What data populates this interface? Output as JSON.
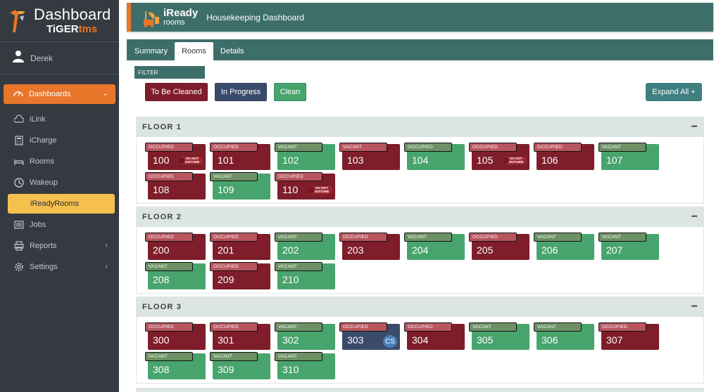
{
  "brand": {
    "title": "Dashboard",
    "sub_a": "TiGER",
    "sub_b": "tms"
  },
  "user": {
    "name": "Derek"
  },
  "nav": [
    {
      "label": "Dashboards",
      "icon": "gauge-icon",
      "state": "active-parent",
      "chevron": "⌄"
    },
    {
      "label": "iLink",
      "icon": "cloud-icon",
      "state": "sub"
    },
    {
      "label": "iCharge",
      "icon": "calculator-icon",
      "state": "sub"
    },
    {
      "label": "Rooms",
      "icon": "bed-icon",
      "state": "sub"
    },
    {
      "label": "Wakeup",
      "icon": "clock-icon",
      "state": "sub"
    },
    {
      "label": "iReadyRooms",
      "icon": "none",
      "state": "active"
    },
    {
      "label": "Jobs",
      "icon": "list-icon",
      "state": "sub"
    },
    {
      "label": "Reports",
      "icon": "printer-icon",
      "state": "parent",
      "chevron": "‹"
    },
    {
      "label": "Settings",
      "icon": "gear-icon",
      "state": "parent",
      "chevron": "‹"
    }
  ],
  "header": {
    "brand_main": "iReady",
    "brand_sub": "rooms",
    "title": "Housekeeping Dashboard"
  },
  "tabs": [
    {
      "label": "Summary",
      "active": false
    },
    {
      "label": "Rooms",
      "active": true
    },
    {
      "label": "Details",
      "active": false
    }
  ],
  "filter": {
    "label": "FILTER",
    "buttons": [
      {
        "label": "To Be Cleaned",
        "color": "#7f1d2a"
      },
      {
        "label": "In Progress",
        "color": "#3a4b6b"
      },
      {
        "label": "Clean",
        "color": "#48a46d"
      }
    ]
  },
  "expand_all": "Expand All +",
  "floors": [
    {
      "title": "FLOOR 1",
      "collapse": "−",
      "rooms": [
        {
          "number": "100",
          "status": "OCCUPIED",
          "state": "occupied",
          "dnd": true
        },
        {
          "number": "101",
          "status": "OCCUPIED",
          "state": "occupied"
        },
        {
          "number": "102",
          "status": "VACANT",
          "state": "vacant"
        },
        {
          "number": "103",
          "status": "VACANT",
          "state": "occupied"
        },
        {
          "number": "104",
          "status": "OCCUPIED",
          "state": "vacant"
        },
        {
          "number": "105",
          "status": "OCCUPIED",
          "state": "occupied",
          "dnd": true
        },
        {
          "number": "106",
          "status": "OCCUPIED",
          "state": "occupied"
        },
        {
          "number": "107",
          "status": "VACANT",
          "state": "vacant"
        },
        {
          "number": "108",
          "status": "OCCUPIED",
          "state": "occupied"
        },
        {
          "number": "109",
          "status": "VACANT",
          "state": "vacant"
        },
        {
          "number": "110",
          "status": "OCCUPIED",
          "state": "occupied",
          "dnd": true
        }
      ]
    },
    {
      "title": "FLOOR 2",
      "collapse": "−",
      "rooms": [
        {
          "number": "200",
          "status": "OCCUPIED",
          "state": "occupied"
        },
        {
          "number": "201",
          "status": "OCCUPIED",
          "state": "occupied"
        },
        {
          "number": "202",
          "status": "VACANT",
          "state": "vacant"
        },
        {
          "number": "203",
          "status": "OCCUPIED",
          "state": "occupied"
        },
        {
          "number": "204",
          "status": "VACANT",
          "state": "vacant"
        },
        {
          "number": "205",
          "status": "OCCUPIED",
          "state": "occupied"
        },
        {
          "number": "206",
          "status": "VACANT",
          "state": "vacant"
        },
        {
          "number": "207",
          "status": "VACANT",
          "state": "vacant"
        },
        {
          "number": "208",
          "status": "VACANT",
          "state": "vacant"
        },
        {
          "number": "209",
          "status": "OCCUPIED",
          "state": "occupied"
        },
        {
          "number": "210",
          "status": "VACANT",
          "state": "vacant"
        }
      ]
    },
    {
      "title": "FLOOR 3",
      "collapse": "−",
      "rooms": [
        {
          "number": "300",
          "status": "OCCUPIED",
          "state": "occupied"
        },
        {
          "number": "301",
          "status": "OCCUPIED",
          "state": "occupied"
        },
        {
          "number": "302",
          "status": "VACANT",
          "state": "vacant"
        },
        {
          "number": "303",
          "status": "OCCUPIED",
          "state": "inprogress",
          "badge": "CS"
        },
        {
          "number": "304",
          "status": "OCCUPIED",
          "state": "occupied"
        },
        {
          "number": "305",
          "status": "VACANT",
          "state": "vacant"
        },
        {
          "number": "306",
          "status": "VACANT",
          "state": "vacant"
        },
        {
          "number": "307",
          "status": "OCCUPIED",
          "state": "occupied"
        },
        {
          "number": "308",
          "status": "VACANT",
          "state": "vacant"
        },
        {
          "number": "309",
          "status": "VACANT",
          "state": "vacant"
        },
        {
          "number": "310",
          "status": "VACANT",
          "state": "vacant"
        }
      ]
    }
  ],
  "dnd_label": "DO NOT DISTURB"
}
